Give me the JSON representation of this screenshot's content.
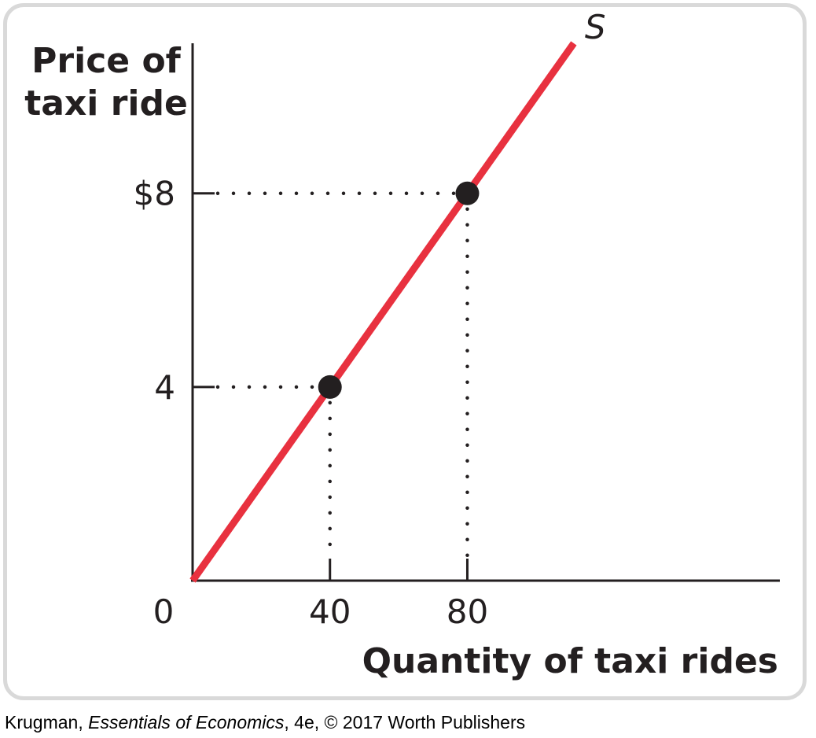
{
  "chart_data": {
    "type": "line",
    "xlabel": "Quantity of taxi rides",
    "ylabel_lines": [
      "Price of",
      "taxi ride"
    ],
    "xlim": [
      0,
      171
    ],
    "ylim": [
      0,
      11.1
    ],
    "x_ticks": [
      {
        "value": 40,
        "label": "40"
      },
      {
        "value": 80,
        "label": "80"
      }
    ],
    "y_ticks": [
      {
        "value": 4,
        "label": "4"
      },
      {
        "value": 8,
        "label": "$8"
      }
    ],
    "origin_label": "0",
    "series": [
      {
        "name": "S",
        "color": "#e8313f",
        "line": [
          [
            0,
            0
          ],
          [
            111,
            11.1
          ]
        ],
        "points": [
          [
            40,
            4
          ],
          [
            80,
            8
          ]
        ]
      }
    ],
    "guides": "dotted lines from each point to both axes",
    "grid": false
  },
  "credit": {
    "author": "Krugman, ",
    "book_title": "Essentials of Economics",
    "rest": ", 4e, © 2017 Worth Publishers"
  },
  "colors": {
    "frame": "#d9d9d9",
    "curve": "#e8313f",
    "ink": "#231f20"
  }
}
